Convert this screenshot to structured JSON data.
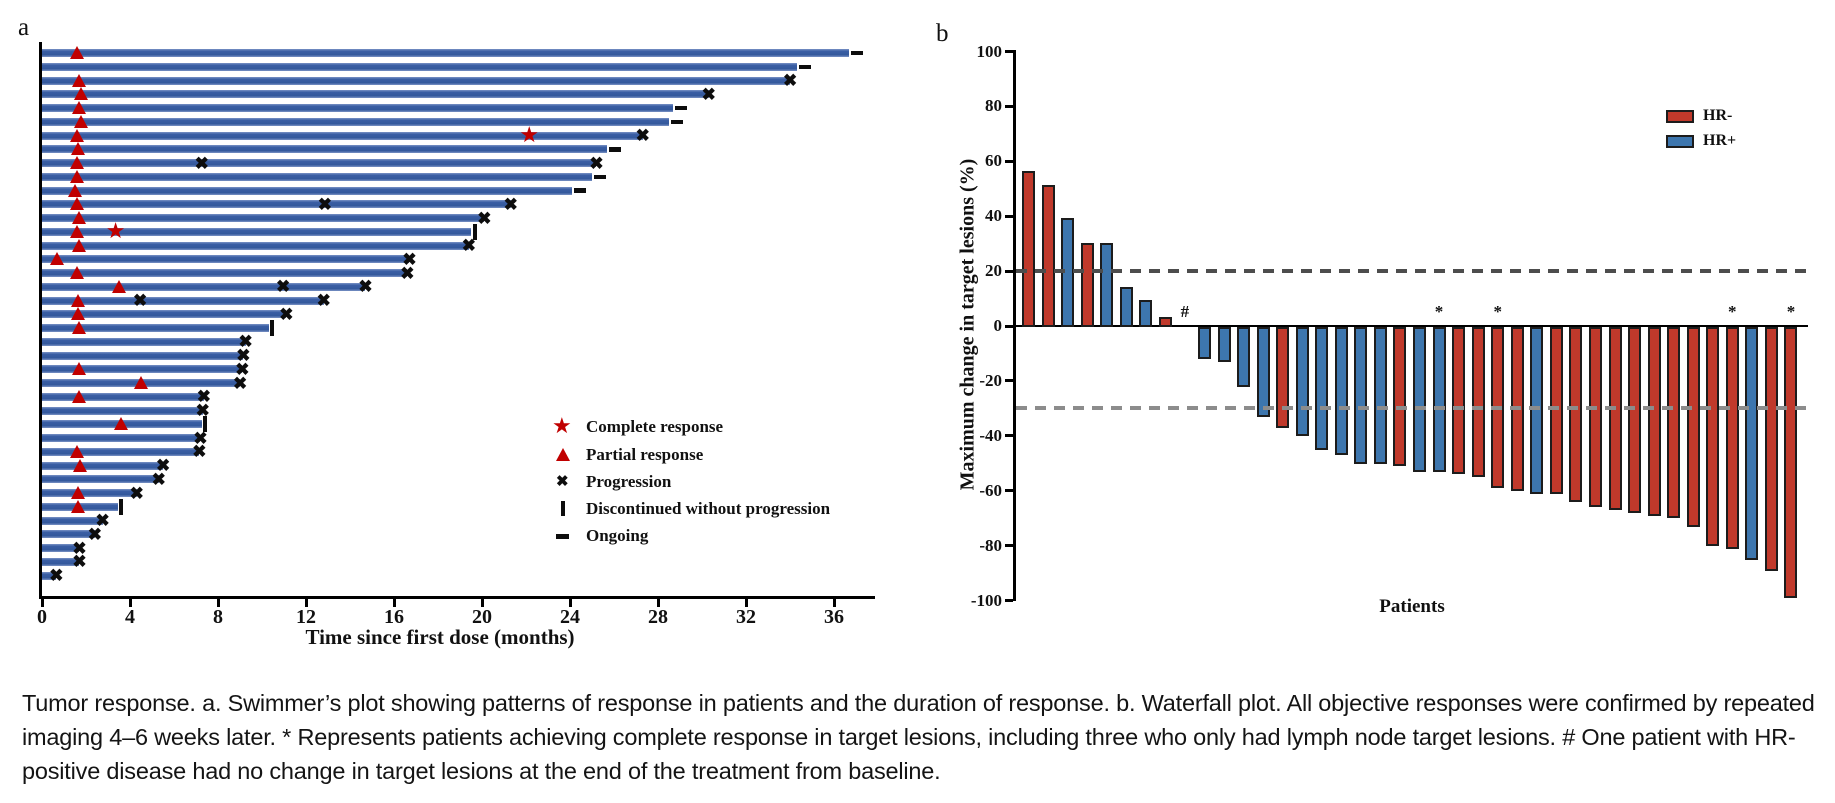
{
  "figure": {
    "panel_a_label": "a",
    "panel_b_label": "b",
    "caption": "Tumor response. a. Swimmer’s plot showing patterns of response in patients and the duration of response. b. Waterfall plot. All objective responses were confirmed by repeated imaging 4–6 weeks later. * Represents patients achieving complete response in target lesions, including three who only had lymph node target lesions. # One patient with HR-positive disease had no change in target lesions at the end of the treatment from baseline."
  },
  "colors": {
    "swimmer_bar": "#34599c",
    "hr_negative": "#c0392b",
    "hr_positive": "#3d76ae",
    "response_marker": "#c00000",
    "ref_line_upper": "#4d4d4d",
    "ref_line_lower": "#8c8c8c",
    "axis": "#000000"
  },
  "chart_data": [
    {
      "type": "bar",
      "name": "swimmers_plot",
      "orientation": "horizontal",
      "title": "",
      "xlabel": "Time since first dose (months)",
      "ylabel": "",
      "xticks": [
        0,
        4,
        8,
        12,
        16,
        20,
        24,
        28,
        32,
        36
      ],
      "xlim": [
        0,
        38
      ],
      "legend": [
        {
          "symbol": "star",
          "label": "Complete response"
        },
        {
          "symbol": "triangle",
          "label": "Partial response"
        },
        {
          "symbol": "x",
          "label": "Progression"
        },
        {
          "symbol": "vbar",
          "label": "Discontinued without progression"
        },
        {
          "symbol": "dash",
          "label": "Ongoing"
        }
      ],
      "patients": [
        {
          "duration": 36.7,
          "end": "ongoing",
          "partial_response_at": [
            1.6
          ],
          "complete_response_at": [],
          "progression_at": []
        },
        {
          "duration": 34.3,
          "end": "ongoing",
          "partial_response_at": [],
          "complete_response_at": [],
          "progression_at": []
        },
        {
          "duration": 34.0,
          "end": "progression",
          "partial_response_at": [
            1.7
          ],
          "complete_response_at": [],
          "progression_at": []
        },
        {
          "duration": 30.3,
          "end": "progression",
          "partial_response_at": [
            1.8
          ],
          "complete_response_at": [],
          "progression_at": []
        },
        {
          "duration": 28.7,
          "end": "ongoing",
          "partial_response_at": [
            1.7
          ],
          "complete_response_at": [],
          "progression_at": []
        },
        {
          "duration": 28.5,
          "end": "ongoing",
          "partial_response_at": [
            1.8
          ],
          "complete_response_at": [],
          "progression_at": []
        },
        {
          "duration": 27.3,
          "end": "progression",
          "partial_response_at": [
            1.6
          ],
          "complete_response_at": [
            22.2
          ],
          "progression_at": []
        },
        {
          "duration": 25.7,
          "end": "ongoing",
          "partial_response_at": [
            1.65
          ],
          "complete_response_at": [],
          "progression_at": []
        },
        {
          "duration": 25.2,
          "end": "progression",
          "partial_response_at": [
            1.6
          ],
          "complete_response_at": [],
          "progression_at": [
            7.3
          ]
        },
        {
          "duration": 25.0,
          "end": "ongoing",
          "partial_response_at": [
            1.6
          ],
          "complete_response_at": [],
          "progression_at": []
        },
        {
          "duration": 24.1,
          "end": "ongoing",
          "partial_response_at": [
            1.5
          ],
          "complete_response_at": [],
          "progression_at": []
        },
        {
          "duration": 21.3,
          "end": "progression",
          "partial_response_at": [
            1.6
          ],
          "complete_response_at": [],
          "progression_at": [
            12.9
          ]
        },
        {
          "duration": 20.1,
          "end": "progression",
          "partial_response_at": [
            1.7
          ],
          "complete_response_at": [],
          "progression_at": []
        },
        {
          "duration": 19.5,
          "end": "discontinued",
          "partial_response_at": [
            1.6
          ],
          "complete_response_at": [
            3.4
          ],
          "progression_at": []
        },
        {
          "duration": 19.4,
          "end": "progression",
          "partial_response_at": [
            1.7
          ],
          "complete_response_at": [],
          "progression_at": []
        },
        {
          "duration": 16.7,
          "end": "progression",
          "partial_response_at": [
            0.7
          ],
          "complete_response_at": [],
          "progression_at": []
        },
        {
          "duration": 16.6,
          "end": "progression",
          "partial_response_at": [
            1.6
          ],
          "complete_response_at": [],
          "progression_at": []
        },
        {
          "duration": 14.7,
          "end": "progression",
          "partial_response_at": [
            3.5
          ],
          "complete_response_at": [],
          "progression_at": [
            11.0
          ]
        },
        {
          "duration": 12.8,
          "end": "progression",
          "partial_response_at": [
            1.65
          ],
          "complete_response_at": [],
          "progression_at": [
            4.5
          ]
        },
        {
          "duration": 11.1,
          "end": "progression",
          "partial_response_at": [
            1.65
          ],
          "complete_response_at": [],
          "progression_at": []
        },
        {
          "duration": 10.3,
          "end": "discontinued",
          "partial_response_at": [
            1.7
          ],
          "complete_response_at": [],
          "progression_at": []
        },
        {
          "duration": 9.25,
          "end": "progression",
          "partial_response_at": [],
          "complete_response_at": [],
          "progression_at": []
        },
        {
          "duration": 9.15,
          "end": "progression",
          "partial_response_at": [],
          "complete_response_at": [],
          "progression_at": []
        },
        {
          "duration": 9.1,
          "end": "progression",
          "partial_response_at": [
            1.7
          ],
          "complete_response_at": [],
          "progression_at": []
        },
        {
          "duration": 9.0,
          "end": "progression",
          "partial_response_at": [
            4.5
          ],
          "complete_response_at": [],
          "progression_at": []
        },
        {
          "duration": 7.35,
          "end": "progression",
          "partial_response_at": [
            1.7
          ],
          "complete_response_at": [],
          "progression_at": []
        },
        {
          "duration": 7.3,
          "end": "progression",
          "partial_response_at": [],
          "complete_response_at": [],
          "progression_at": []
        },
        {
          "duration": 7.25,
          "end": "discontinued",
          "partial_response_at": [
            3.6
          ],
          "complete_response_at": [],
          "progression_at": []
        },
        {
          "duration": 7.2,
          "end": "progression",
          "partial_response_at": [],
          "complete_response_at": [],
          "progression_at": []
        },
        {
          "duration": 7.15,
          "end": "progression",
          "partial_response_at": [
            1.6
          ],
          "complete_response_at": [],
          "progression_at": []
        },
        {
          "duration": 5.5,
          "end": "progression",
          "partial_response_at": [
            1.75
          ],
          "complete_response_at": [],
          "progression_at": []
        },
        {
          "duration": 5.3,
          "end": "progression",
          "partial_response_at": [],
          "complete_response_at": [],
          "progression_at": []
        },
        {
          "duration": 4.3,
          "end": "progression",
          "partial_response_at": [
            1.65
          ],
          "complete_response_at": [],
          "progression_at": []
        },
        {
          "duration": 3.45,
          "end": "discontinued",
          "partial_response_at": [
            1.65
          ],
          "complete_response_at": [],
          "progression_at": []
        },
        {
          "duration": 2.75,
          "end": "progression",
          "partial_response_at": [],
          "complete_response_at": [],
          "progression_at": []
        },
        {
          "duration": 2.4,
          "end": "progression",
          "partial_response_at": [],
          "complete_response_at": [],
          "progression_at": []
        },
        {
          "duration": 1.7,
          "end": "progression",
          "partial_response_at": [],
          "complete_response_at": [],
          "progression_at": []
        },
        {
          "duration": 1.7,
          "end": "progression",
          "partial_response_at": [],
          "complete_response_at": [],
          "progression_at": []
        },
        {
          "duration": 0.65,
          "end": "progression",
          "partial_response_at": [],
          "complete_response_at": [],
          "progression_at": []
        }
      ]
    },
    {
      "type": "bar",
      "name": "waterfall_plot",
      "title": "",
      "xlabel": "Patients",
      "ylabel": "Maximum change in target lesions (%)",
      "ylim": [
        -100,
        100
      ],
      "yticks": [
        100,
        80,
        60,
        40,
        20,
        0,
        -20,
        -40,
        -60,
        -80,
        -100
      ],
      "reference_lines": [
        20,
        -30
      ],
      "legend": [
        {
          "label": "HR-",
          "color": "#c0392b"
        },
        {
          "label": "HR+",
          "color": "#3d76ae"
        }
      ],
      "patients": [
        {
          "value": 56,
          "group": "HR-"
        },
        {
          "value": 51,
          "group": "HR-"
        },
        {
          "value": 39,
          "group": "HR+"
        },
        {
          "value": 30,
          "group": "HR-"
        },
        {
          "value": 30,
          "group": "HR+"
        },
        {
          "value": 14,
          "group": "HR+"
        },
        {
          "value": 9,
          "group": "HR+"
        },
        {
          "value": 3,
          "group": "HR-"
        },
        {
          "value": 0,
          "group": "HR+",
          "annotation": "#"
        },
        {
          "value": -11,
          "group": "HR+"
        },
        {
          "value": -12,
          "group": "HR+"
        },
        {
          "value": -21,
          "group": "HR+"
        },
        {
          "value": -32,
          "group": "HR+"
        },
        {
          "value": -36,
          "group": "HR-"
        },
        {
          "value": -39,
          "group": "HR+"
        },
        {
          "value": -44,
          "group": "HR+"
        },
        {
          "value": -46,
          "group": "HR+"
        },
        {
          "value": -49,
          "group": "HR+"
        },
        {
          "value": -49,
          "group": "HR+"
        },
        {
          "value": -50,
          "group": "HR-"
        },
        {
          "value": -52,
          "group": "HR+"
        },
        {
          "value": -52,
          "group": "HR+",
          "annotation": "*"
        },
        {
          "value": -53,
          "group": "HR-"
        },
        {
          "value": -54,
          "group": "HR-"
        },
        {
          "value": -58,
          "group": "HR-",
          "annotation": "*"
        },
        {
          "value": -59,
          "group": "HR-"
        },
        {
          "value": -60,
          "group": "HR+"
        },
        {
          "value": -60,
          "group": "HR-"
        },
        {
          "value": -63,
          "group": "HR-"
        },
        {
          "value": -65,
          "group": "HR-"
        },
        {
          "value": -66,
          "group": "HR-"
        },
        {
          "value": -67,
          "group": "HR-"
        },
        {
          "value": -68,
          "group": "HR-"
        },
        {
          "value": -69,
          "group": "HR-"
        },
        {
          "value": -72,
          "group": "HR-"
        },
        {
          "value": -79,
          "group": "HR-"
        },
        {
          "value": -80,
          "group": "HR-",
          "annotation": "*"
        },
        {
          "value": -84,
          "group": "HR+"
        },
        {
          "value": -88,
          "group": "HR-"
        },
        {
          "value": -98,
          "group": "HR-",
          "annotation": "*"
        }
      ]
    }
  ]
}
